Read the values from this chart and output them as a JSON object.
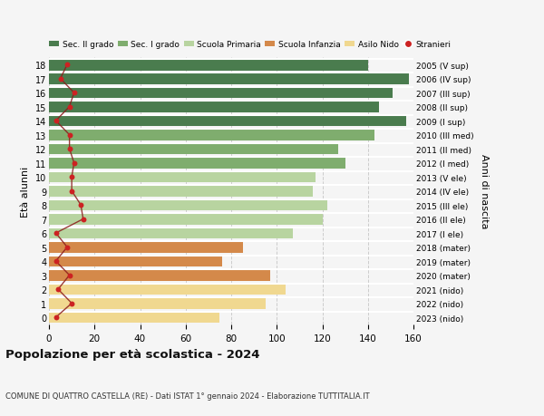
{
  "ages": [
    18,
    17,
    16,
    15,
    14,
    13,
    12,
    11,
    10,
    9,
    8,
    7,
    6,
    5,
    4,
    3,
    2,
    1,
    0
  ],
  "right_labels": [
    "2005 (V sup)",
    "2006 (IV sup)",
    "2007 (III sup)",
    "2008 (II sup)",
    "2009 (I sup)",
    "2010 (III med)",
    "2011 (II med)",
    "2012 (I med)",
    "2013 (V ele)",
    "2014 (IV ele)",
    "2015 (III ele)",
    "2016 (II ele)",
    "2017 (I ele)",
    "2018 (mater)",
    "2019 (mater)",
    "2020 (mater)",
    "2021 (nido)",
    "2022 (nido)",
    "2023 (nido)"
  ],
  "bar_values": [
    140,
    158,
    151,
    145,
    157,
    143,
    127,
    130,
    117,
    116,
    122,
    120,
    107,
    85,
    76,
    97,
    104,
    95,
    75
  ],
  "bar_colors": [
    "#4a7c4e",
    "#4a7c4e",
    "#4a7c4e",
    "#4a7c4e",
    "#4a7c4e",
    "#7fad6e",
    "#7fad6e",
    "#7fad6e",
    "#b8d4a0",
    "#b8d4a0",
    "#b8d4a0",
    "#b8d4a0",
    "#b8d4a0",
    "#d4894a",
    "#d4894a",
    "#d4894a",
    "#f0d890",
    "#f0d890",
    "#f0d890"
  ],
  "stranieri_values": [
    8,
    5,
    11,
    9,
    3,
    9,
    9,
    11,
    10,
    10,
    14,
    15,
    3,
    8,
    3,
    9,
    4,
    10,
    3
  ],
  "title": "Popolazione per età scolastica - 2024",
  "subtitle": "COMUNE DI QUATTRO CASTELLA (RE) - Dati ISTAT 1° gennaio 2024 - Elaborazione TUTTITALIA.IT",
  "ylabel": "Età alunni",
  "right_ylabel": "Anni di nascita",
  "xlim": [
    0,
    160
  ],
  "xticks": [
    0,
    20,
    40,
    60,
    80,
    100,
    120,
    140,
    160
  ],
  "legend_labels": [
    "Sec. II grado",
    "Sec. I grado",
    "Scuola Primaria",
    "Scuola Infanzia",
    "Asilo Nido",
    "Stranieri"
  ],
  "legend_colors": [
    "#4a7c4e",
    "#7fad6e",
    "#b8d4a0",
    "#d4894a",
    "#f0d890",
    "#cc2222"
  ],
  "bg_color": "#f5f5f5",
  "grid_color": "#cccccc",
  "stranieri_line_color": "#8b1a1a",
  "stranieri_marker_color": "#cc2222"
}
